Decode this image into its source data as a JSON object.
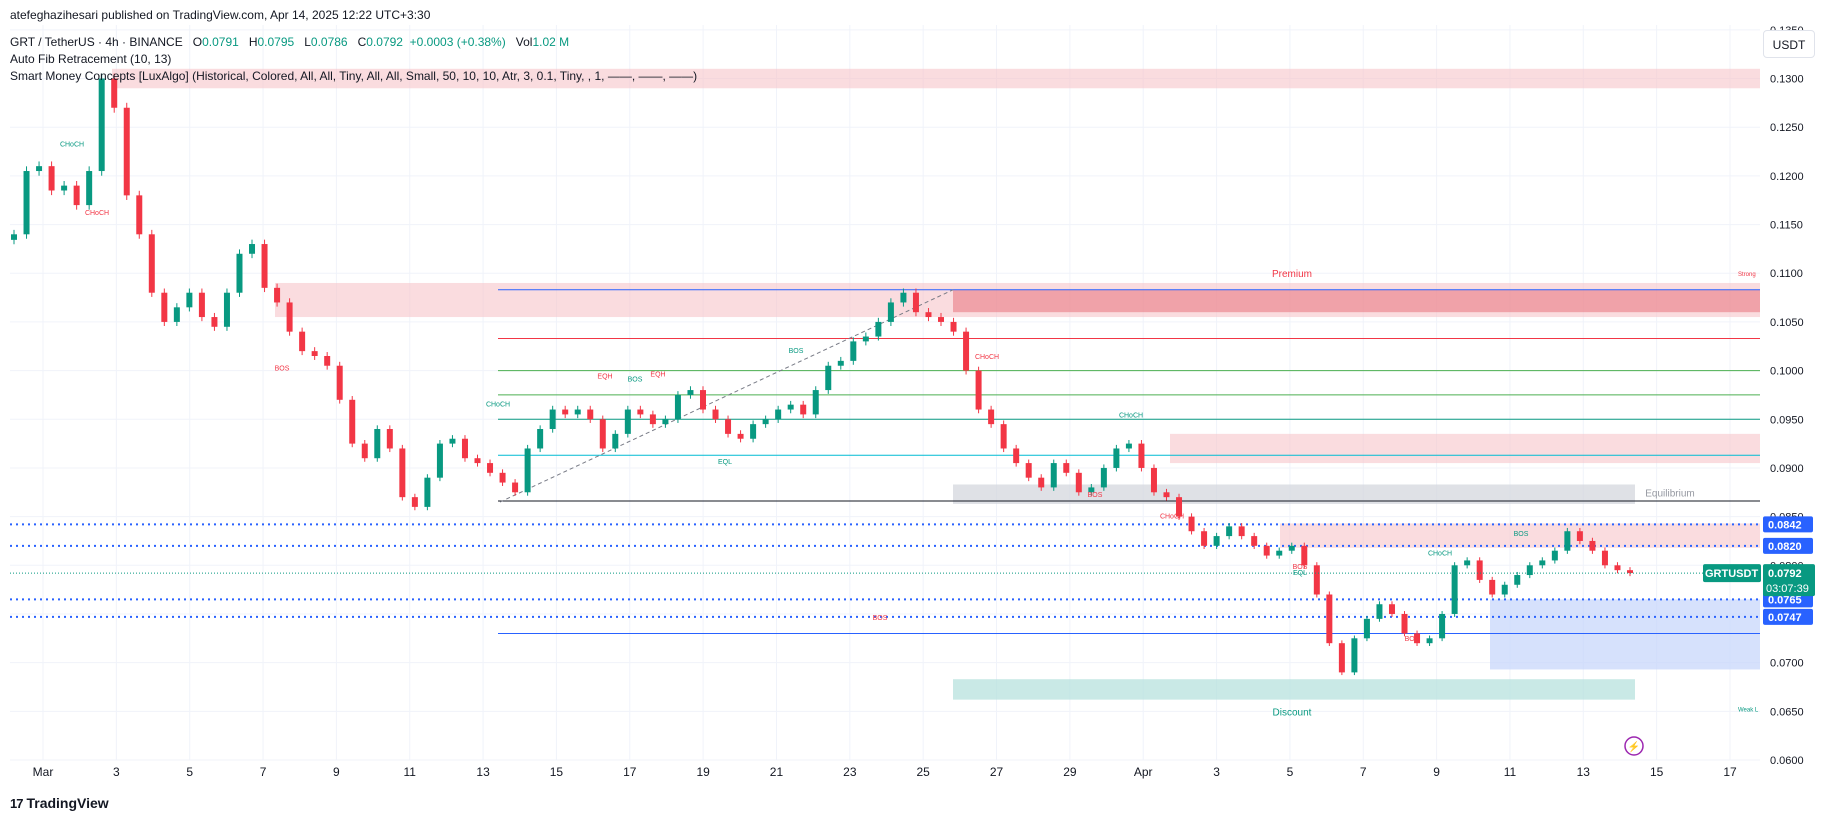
{
  "header": {
    "publisher": "atefeghazihesari published on TradingView.com, Apr 14, 2025 12:22 UTC+3:30",
    "symbol": "GRT / TetherUS · 4h · BINANCE",
    "o_label": "O",
    "o_value": "0.0791",
    "h_label": "H",
    "h_value": "0.0795",
    "l_label": "L",
    "l_value": "0.0786",
    "c_label": "C",
    "c_value": "0.0792",
    "change": "+0.0003 (+0.38%)",
    "vol_label": "Vol",
    "vol_value": "1.02 M",
    "indicator_fib": "Auto Fib Retracement (10, 13)",
    "indicator_smc": "Smart Money Concepts [LuxAlgo] (Historical, Colored, All, All, Tiny, All, All, Small, 50, 10, 10, Atr, 3, 0.1, Tiny, , 1, ——, ——, ——)"
  },
  "currency_button": "USDT",
  "footer": {
    "logo_mark": "17",
    "logo_text": "TradingView"
  },
  "colors": {
    "up": "#089981",
    "down": "#f23645",
    "fib_blue": "#2962ff",
    "premium_zone": "#f7c5c9",
    "discount_zone": "#b2dfdb",
    "equilibrium": "#d1d4dc"
  },
  "chart_data": {
    "type": "candlestick",
    "timeframe": "4h",
    "ylim": [
      0.06,
      0.1355
    ],
    "y_ticks": [
      "0.1350",
      "0.1300",
      "0.1250",
      "0.1200",
      "0.1150",
      "0.1100",
      "0.1050",
      "0.1000",
      "0.0950",
      "0.0900",
      "0.0850",
      "0.0800",
      "0.0750",
      "0.0700",
      "0.0650",
      "0.0600"
    ],
    "x_ticks": [
      "Mar",
      "3",
      "5",
      "7",
      "9",
      "11",
      "13",
      "15",
      "17",
      "19",
      "21",
      "23",
      "25",
      "27",
      "29",
      "Apr",
      "3",
      "5",
      "7",
      "9",
      "11",
      "13",
      "15",
      "17"
    ],
    "last_price": {
      "symbol": "GRTUSDT",
      "value": "0.0792",
      "countdown": "03:07:39"
    },
    "price_tags": [
      "0.0842",
      "0.0820",
      "0.0765",
      "0.0747"
    ],
    "dotted_levels": [
      0.0842,
      0.082,
      0.0765,
      0.0747
    ],
    "zone_labels": {
      "premium": "Premium",
      "equilibrium": "Equilibrium",
      "discount": "Discount",
      "strong_high": "Strong",
      "weak_low": "Weak L"
    },
    "structure_labels": [
      "CHoCH",
      "CHoCH",
      "BOS",
      "CHoCH",
      "EQH",
      "BOS",
      "EQH",
      "BOS",
      "EQL",
      "CHoCH",
      "CHoCH",
      "BOS",
      "CHoCH",
      "BOS",
      "BOS",
      "CHoCH",
      "BOS",
      "BOS",
      "EQL"
    ],
    "fib_levels": [
      0.1083,
      0.1033,
      0.1,
      0.0975,
      0.095,
      0.0913,
      0.0866,
      0.073
    ],
    "closes": [
      0.114,
      0.1205,
      0.121,
      0.1185,
      0.119,
      0.117,
      0.1205,
      0.13,
      0.127,
      0.118,
      0.114,
      0.108,
      0.105,
      0.1065,
      0.108,
      0.1055,
      0.1045,
      0.108,
      0.112,
      0.113,
      0.1085,
      0.107,
      0.104,
      0.102,
      0.1015,
      0.1005,
      0.097,
      0.0925,
      0.091,
      0.094,
      0.092,
      0.087,
      0.086,
      0.089,
      0.0925,
      0.093,
      0.091,
      0.0905,
      0.0895,
      0.0885,
      0.0875,
      0.092,
      0.094,
      0.096,
      0.0955,
      0.096,
      0.095,
      0.092,
      0.0935,
      0.096,
      0.0955,
      0.0945,
      0.095,
      0.0975,
      0.098,
      0.096,
      0.095,
      0.0935,
      0.093,
      0.0945,
      0.095,
      0.096,
      0.0965,
      0.0955,
      0.098,
      0.1005,
      0.101,
      0.103,
      0.1035,
      0.105,
      0.107,
      0.108,
      0.106,
      0.1055,
      0.105,
      0.104,
      0.1,
      0.096,
      0.0945,
      0.092,
      0.0905,
      0.089,
      0.088,
      0.0905,
      0.0895,
      0.0875,
      0.088,
      0.09,
      0.092,
      0.0925,
      0.09,
      0.0875,
      0.087,
      0.085,
      0.0835,
      0.082,
      0.083,
      0.084,
      0.083,
      0.082,
      0.081,
      0.0815,
      0.082,
      0.08,
      0.077,
      0.072,
      0.069,
      0.0725,
      0.0745,
      0.076,
      0.075,
      0.073,
      0.072,
      0.0725,
      0.075,
      0.08,
      0.0805,
      0.0785,
      0.077,
      0.078,
      0.079,
      0.08,
      0.0805,
      0.0815,
      0.0835,
      0.0825,
      0.0815,
      0.08,
      0.0795,
      0.0792
    ]
  }
}
